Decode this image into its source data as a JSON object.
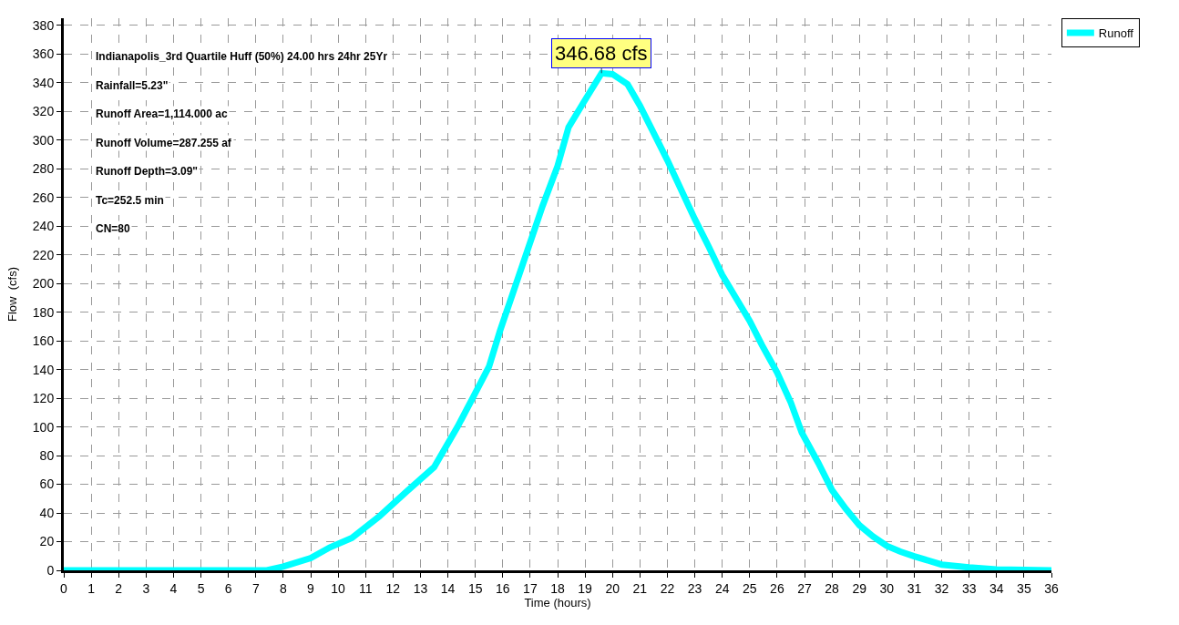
{
  "chart_data": {
    "type": "line",
    "xlabel": "Time (hours)",
    "ylabel": "Flow  (cfs)",
    "x": [
      0,
      7.4,
      8.0,
      9.0,
      9.7,
      10.5,
      11.5,
      12.5,
      13.5,
      14.35,
      14.9,
      15.5,
      15.9,
      16.4,
      16.9,
      17.45,
      18.0,
      18.4,
      19.0,
      19.6,
      20.0,
      20.55,
      21.0,
      22.0,
      23.0,
      23.5,
      24.0,
      24.5,
      25.0,
      25.45,
      26.0,
      26.5,
      26.9,
      27.5,
      28.0,
      28.5,
      29.0,
      29.5,
      30.0,
      30.5,
      31.0,
      32.0,
      33.0,
      34.0,
      36.0
    ],
    "series": [
      {
        "name": "Runoff",
        "color": "#00ffff",
        "values": [
          0,
          0,
          2.6,
          8.5,
          16,
          22.5,
          37.6,
          55,
          72,
          100,
          120,
          142,
          167,
          195,
          223,
          254,
          282,
          309,
          328,
          346.68,
          346,
          339,
          324,
          286,
          245,
          226,
          206,
          190,
          174,
          157,
          138,
          117,
          96,
          75,
          56,
          43,
          31.5,
          23.6,
          17,
          13,
          9.8,
          4,
          2,
          0.7,
          0
        ]
      }
    ],
    "xlim": [
      0,
      36
    ],
    "ylim": [
      0,
      385
    ],
    "xticks": [
      0,
      1,
      2,
      3,
      4,
      5,
      6,
      7,
      8,
      9,
      10,
      11,
      12,
      13,
      14,
      15,
      16,
      17,
      18,
      19,
      20,
      21,
      22,
      23,
      24,
      25,
      26,
      27,
      28,
      29,
      30,
      31,
      32,
      33,
      34,
      35,
      36
    ],
    "yticks": [
      0,
      20,
      40,
      60,
      80,
      100,
      120,
      140,
      160,
      180,
      200,
      220,
      240,
      260,
      280,
      300,
      320,
      340,
      360,
      380
    ],
    "annotations": [
      {
        "text": "346.68 cfs",
        "x": 19.6,
        "y": 346.68
      },
      "Indianapolis_3rd Quartile Huff (50%) 24.00 hrs 24hr 25Yr",
      "Rainfall=5.23\"",
      "Runoff Area=1,114.000 ac",
      "Runoff Volume=287.255 af",
      "Runoff Depth=3.09\"",
      "Tc=252.5 min",
      "CN=80"
    ],
    "grid": true,
    "legend": "top right",
    "marker": "none",
    "line_style": "solid"
  }
}
